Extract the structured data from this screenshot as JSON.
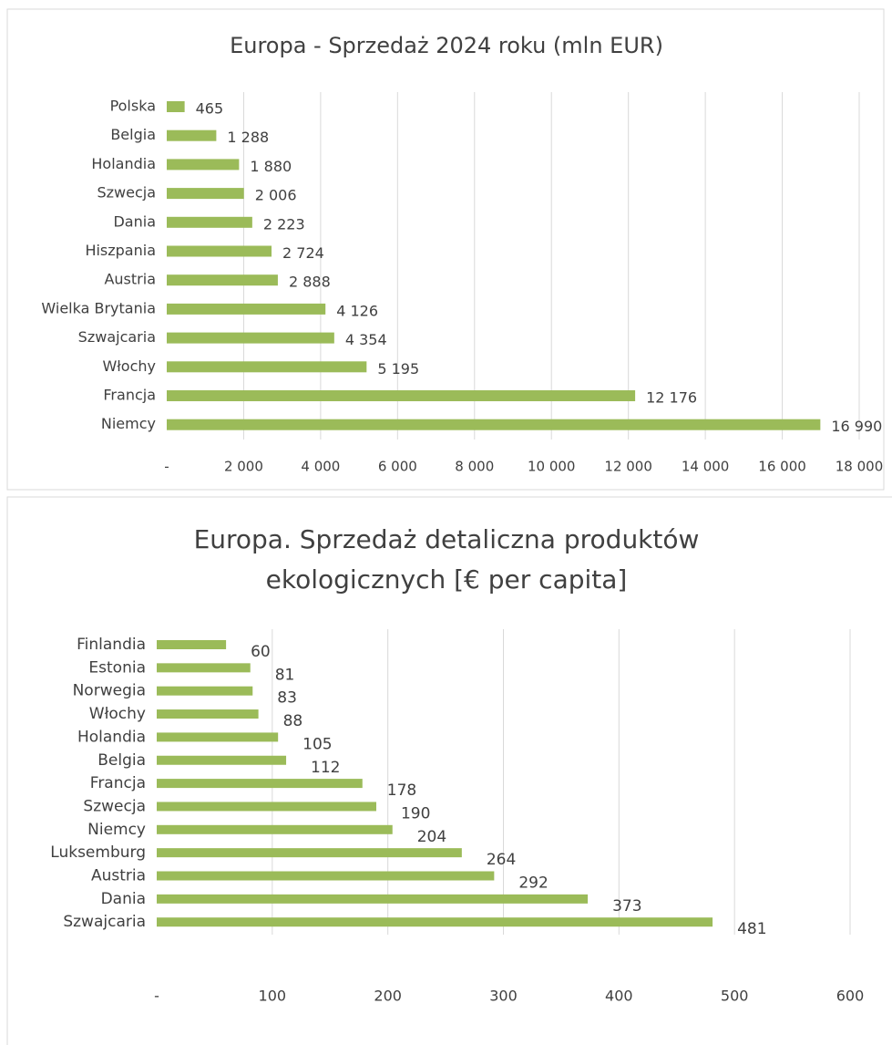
{
  "chart_data": [
    {
      "type": "bar",
      "orientation": "horizontal",
      "title": "Europa - Sprzedaż 2024 roku (mln EUR)",
      "categories": [
        "Polska",
        "Belgia",
        "Holandia",
        "Szwecja",
        "Dania",
        "Hiszpania",
        "Austria",
        "Wielka Brytania",
        "Szwajcaria",
        "Włochy",
        "Francja",
        "Niemcy"
      ],
      "values": [
        465,
        1288,
        1880,
        2006,
        2223,
        2724,
        2888,
        4126,
        4354,
        5195,
        12176,
        16990
      ],
      "value_labels": [
        "465",
        "1 288",
        "1 880",
        "2 006",
        "2 223",
        "2 724",
        "2 888",
        "4 126",
        "4 354",
        "5 195",
        "12 176",
        "16 990"
      ],
      "color": "#9bbb59",
      "grid": true,
      "xlim": [
        0,
        18000
      ],
      "xticks": [
        {
          "value": 0,
          "label": "-"
        },
        {
          "value": 2000,
          "label": "2 000"
        },
        {
          "value": 4000,
          "label": "4 000"
        },
        {
          "value": 6000,
          "label": "6 000"
        },
        {
          "value": 8000,
          "label": "8 000"
        },
        {
          "value": 10000,
          "label": "10 000"
        },
        {
          "value": 12000,
          "label": "12 000"
        },
        {
          "value": 14000,
          "label": "14 000"
        },
        {
          "value": 16000,
          "label": "16 000"
        },
        {
          "value": 18000,
          "label": "18 000"
        }
      ]
    },
    {
      "type": "bar",
      "orientation": "horizontal",
      "title": "Europa. Sprzedaż detaliczna produktów ekologicznych [€ per capita]",
      "categories": [
        "Finlandia",
        "Estonia",
        "Norwegia",
        "Włochy",
        "Holandia",
        "Belgia",
        "Francja",
        "Szwecja",
        "Niemcy",
        "Luksemburg",
        "Austria",
        "Dania",
        "Szwajcaria"
      ],
      "values": [
        60,
        81,
        83,
        88,
        105,
        112,
        178,
        190,
        204,
        264,
        292,
        373,
        481
      ],
      "color": "#9bbb59",
      "grid": true,
      "xlim": [
        0,
        600
      ],
      "xticks": [
        {
          "value": 0,
          "label": "-"
        },
        100,
        200,
        300,
        400,
        500,
        600
      ]
    }
  ]
}
